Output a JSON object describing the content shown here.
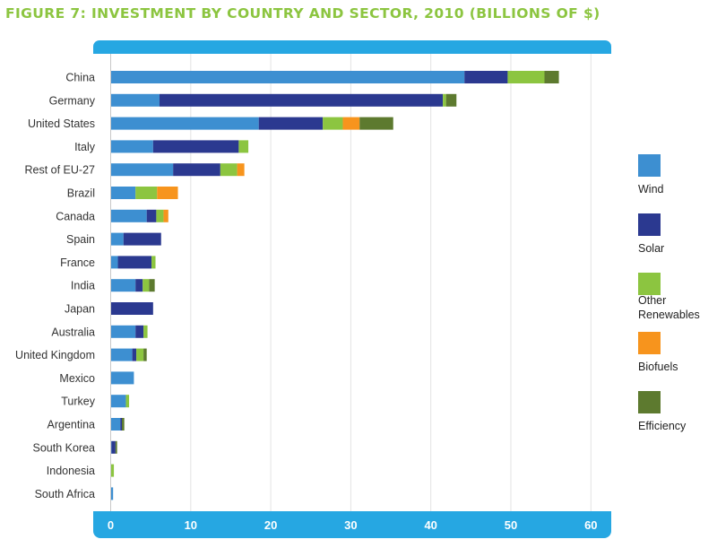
{
  "chart_data": {
    "type": "bar",
    "orientation": "horizontal",
    "stacked": true,
    "title": "FIGURE 7: INVESTMENT BY COUNTRY AND SECTOR, 2010 (BILLIONS OF $)",
    "categories": [
      "China",
      "Germany",
      "United States",
      "Italy",
      "Rest of EU-27",
      "Brazil",
      "Canada",
      "Spain",
      "France",
      "India",
      "Japan",
      "Australia",
      "United Kingdom",
      "Mexico",
      "Turkey",
      "Argentina",
      "South Korea",
      "Indonesia",
      "South Africa"
    ],
    "series": [
      {
        "name": "Wind",
        "color": "#3d8fd1",
        "values": [
          44.2,
          6.1,
          18.5,
          5.3,
          7.8,
          3.1,
          4.5,
          1.6,
          0.9,
          3.1,
          0.0,
          3.1,
          2.7,
          2.9,
          1.9,
          1.2,
          0.1,
          0.0,
          0.3
        ]
      },
      {
        "name": "Solar",
        "color": "#2b3990",
        "values": [
          5.4,
          35.4,
          8.0,
          10.7,
          5.9,
          0.0,
          1.2,
          4.7,
          4.2,
          0.9,
          5.3,
          1.0,
          0.5,
          0.0,
          0.0,
          0.2,
          0.5,
          0.0,
          0.0
        ]
      },
      {
        "name": "Other Renewables",
        "color": "#8cc540",
        "values": [
          4.6,
          0.4,
          2.5,
          1.2,
          2.1,
          2.7,
          0.9,
          0.0,
          0.5,
          0.8,
          0.0,
          0.5,
          0.9,
          0.0,
          0.4,
          0.0,
          0.0,
          0.4,
          0.0
        ]
      },
      {
        "name": "Biofuels",
        "color": "#f7941d",
        "values": [
          0.0,
          0.0,
          2.1,
          0.0,
          0.9,
          2.6,
          0.6,
          0.0,
          0.0,
          0.0,
          0.0,
          0.0,
          0.0,
          0.0,
          0.0,
          0.0,
          0.0,
          0.0,
          0.0
        ]
      },
      {
        "name": "Efficiency",
        "color": "#5d7a2f",
        "values": [
          1.8,
          1.3,
          4.2,
          0.0,
          0.0,
          0.0,
          0.0,
          0.0,
          0.0,
          0.7,
          0.0,
          0.0,
          0.4,
          0.0,
          0.0,
          0.3,
          0.2,
          0.0,
          0.0
        ]
      }
    ],
    "xlim": [
      0,
      60
    ],
    "xticks": [
      0,
      10,
      20,
      30,
      40,
      50,
      60
    ],
    "grid": "vertical",
    "legend_position": "right"
  }
}
